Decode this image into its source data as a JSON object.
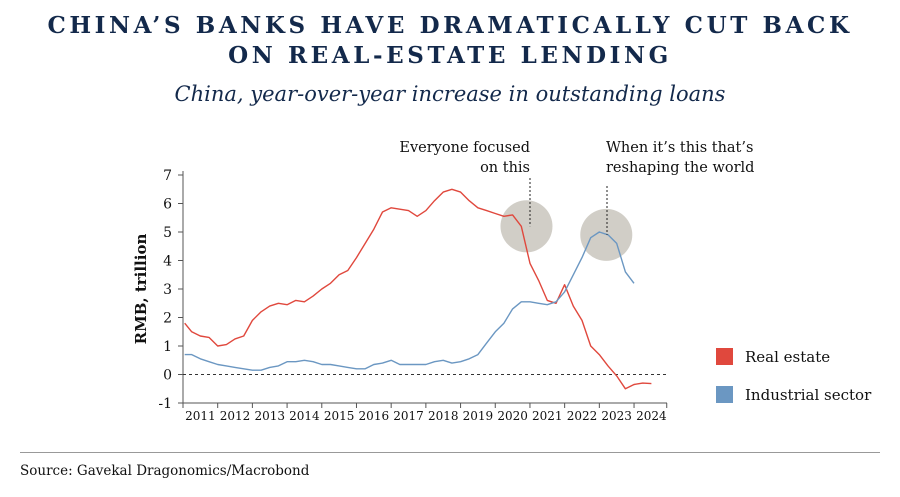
{
  "title_line1": "CHINA’S BANKS HAVE DRAMATICALLY CUT BACK",
  "title_line2": "ON REAL-ESTATE LENDING",
  "subtitle": "China, year-over-year increase in outstanding loans",
  "source": "Source: Gavekal Dragonomics/Macrobond",
  "colors": {
    "real_estate": "#e0483d",
    "industrial": "#6b97c2",
    "highlight": "#c9c6bd"
  },
  "chart_data": {
    "type": "line",
    "ylabel": "RMB, trillion",
    "ylim": [
      -1,
      7
    ],
    "yticks": [
      -1,
      0,
      1,
      2,
      3,
      4,
      5,
      6,
      7
    ],
    "xlim": [
      2010.5,
      2024.45
    ],
    "xticks": [
      2011,
      2012,
      2013,
      2014,
      2015,
      2016,
      2017,
      2018,
      2019,
      2020,
      2021,
      2022,
      2023,
      2024
    ],
    "zero_line": "dashed",
    "legend_position": "right",
    "annotations": [
      {
        "text_lines": [
          "Everyone focused",
          "on this"
        ],
        "x": 2020.4,
        "y": 5.2
      },
      {
        "text_lines": [
          "When it’s this that’s",
          "reshaping the world"
        ],
        "x": 2022.7,
        "y": 4.9
      }
    ],
    "series": [
      {
        "name": "Real estate",
        "color": "#e0483d",
        "points": [
          [
            2010.55,
            1.8
          ],
          [
            2010.75,
            1.5
          ],
          [
            2011.0,
            1.35
          ],
          [
            2011.25,
            1.3
          ],
          [
            2011.5,
            1.0
          ],
          [
            2011.75,
            1.05
          ],
          [
            2012.0,
            1.25
          ],
          [
            2012.25,
            1.35
          ],
          [
            2012.5,
            1.9
          ],
          [
            2012.75,
            2.2
          ],
          [
            2013.0,
            2.4
          ],
          [
            2013.25,
            2.5
          ],
          [
            2013.5,
            2.45
          ],
          [
            2013.75,
            2.6
          ],
          [
            2014.0,
            2.55
          ],
          [
            2014.25,
            2.75
          ],
          [
            2014.5,
            3.0
          ],
          [
            2014.75,
            3.2
          ],
          [
            2015.0,
            3.5
          ],
          [
            2015.25,
            3.65
          ],
          [
            2015.5,
            4.1
          ],
          [
            2015.75,
            4.6
          ],
          [
            2016.0,
            5.1
          ],
          [
            2016.25,
            5.7
          ],
          [
            2016.5,
            5.85
          ],
          [
            2016.75,
            5.8
          ],
          [
            2017.0,
            5.75
          ],
          [
            2017.25,
            5.55
          ],
          [
            2017.5,
            5.75
          ],
          [
            2017.75,
            6.1
          ],
          [
            2018.0,
            6.4
          ],
          [
            2018.25,
            6.5
          ],
          [
            2018.5,
            6.4
          ],
          [
            2018.75,
            6.1
          ],
          [
            2019.0,
            5.85
          ],
          [
            2019.25,
            5.75
          ],
          [
            2019.5,
            5.65
          ],
          [
            2019.75,
            5.55
          ],
          [
            2020.0,
            5.6
          ],
          [
            2020.25,
            5.2
          ],
          [
            2020.5,
            3.9
          ],
          [
            2020.75,
            3.3
          ],
          [
            2021.0,
            2.6
          ],
          [
            2021.25,
            2.5
          ],
          [
            2021.5,
            3.15
          ],
          [
            2021.75,
            2.4
          ],
          [
            2022.0,
            1.9
          ],
          [
            2022.25,
            1.0
          ],
          [
            2022.5,
            0.7
          ],
          [
            2022.75,
            0.3
          ],
          [
            2023.0,
            -0.05
          ],
          [
            2023.25,
            -0.5
          ],
          [
            2023.5,
            -0.35
          ],
          [
            2023.75,
            -0.3
          ],
          [
            2024.0,
            -0.32
          ]
        ]
      },
      {
        "name": "Industrial sector",
        "color": "#6b97c2",
        "points": [
          [
            2010.55,
            0.7
          ],
          [
            2010.75,
            0.7
          ],
          [
            2011.0,
            0.55
          ],
          [
            2011.25,
            0.45
          ],
          [
            2011.5,
            0.35
          ],
          [
            2011.75,
            0.3
          ],
          [
            2012.0,
            0.25
          ],
          [
            2012.25,
            0.2
          ],
          [
            2012.5,
            0.15
          ],
          [
            2012.75,
            0.15
          ],
          [
            2013.0,
            0.25
          ],
          [
            2013.25,
            0.3
          ],
          [
            2013.5,
            0.45
          ],
          [
            2013.75,
            0.45
          ],
          [
            2014.0,
            0.5
          ],
          [
            2014.25,
            0.45
          ],
          [
            2014.5,
            0.35
          ],
          [
            2014.75,
            0.35
          ],
          [
            2015.0,
            0.3
          ],
          [
            2015.25,
            0.25
          ],
          [
            2015.5,
            0.2
          ],
          [
            2015.75,
            0.2
          ],
          [
            2016.0,
            0.35
          ],
          [
            2016.25,
            0.4
          ],
          [
            2016.5,
            0.5
          ],
          [
            2016.75,
            0.35
          ],
          [
            2017.0,
            0.35
          ],
          [
            2017.25,
            0.35
          ],
          [
            2017.5,
            0.35
          ],
          [
            2017.75,
            0.45
          ],
          [
            2018.0,
            0.5
          ],
          [
            2018.25,
            0.4
          ],
          [
            2018.5,
            0.45
          ],
          [
            2018.75,
            0.55
          ],
          [
            2019.0,
            0.7
          ],
          [
            2019.25,
            1.1
          ],
          [
            2019.5,
            1.5
          ],
          [
            2019.75,
            1.8
          ],
          [
            2020.0,
            2.3
          ],
          [
            2020.25,
            2.55
          ],
          [
            2020.5,
            2.55
          ],
          [
            2020.75,
            2.5
          ],
          [
            2021.0,
            2.45
          ],
          [
            2021.25,
            2.55
          ],
          [
            2021.5,
            2.9
          ],
          [
            2021.75,
            3.5
          ],
          [
            2022.0,
            4.1
          ],
          [
            2022.25,
            4.8
          ],
          [
            2022.5,
            5.0
          ],
          [
            2022.75,
            4.9
          ],
          [
            2023.0,
            4.6
          ],
          [
            2023.25,
            3.6
          ],
          [
            2023.5,
            3.2
          ]
        ]
      }
    ]
  }
}
